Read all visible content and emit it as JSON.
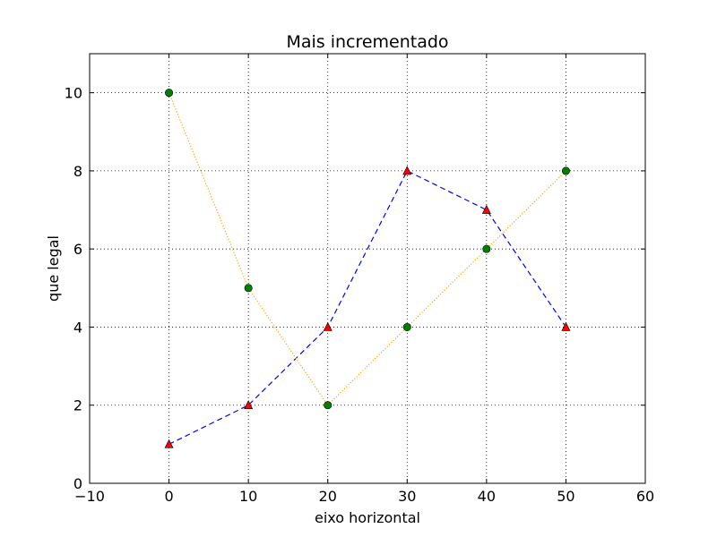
{
  "chart_data": {
    "type": "line",
    "title": "Mais incrementado",
    "xlabel": "eixo horizontal",
    "ylabel": "que legal",
    "xlim": [
      -10,
      60
    ],
    "ylim": [
      0,
      11
    ],
    "x_ticks": [
      -10,
      0,
      10,
      20,
      30,
      40,
      50,
      60
    ],
    "x_tick_labels": [
      "−10",
      "0",
      "10",
      "20",
      "30",
      "40",
      "50",
      "60"
    ],
    "y_ticks": [
      0,
      2,
      4,
      6,
      8,
      10
    ],
    "y_tick_labels": [
      "0",
      "2",
      "4",
      "6",
      "8",
      "10"
    ],
    "grid": true,
    "x": [
      0,
      10,
      20,
      30,
      40,
      50
    ],
    "series": [
      {
        "values": [
          1,
          2,
          4,
          8,
          7,
          4
        ],
        "line_color": "#0000ff",
        "line_style": "dashed",
        "marker": "triangle",
        "marker_color": "#ff0000"
      },
      {
        "values": [
          10,
          5,
          2,
          4,
          6,
          8
        ],
        "line_color": "#ffa500",
        "line_style": "dotted",
        "marker": "circle",
        "marker_color": "#008000"
      }
    ]
  }
}
